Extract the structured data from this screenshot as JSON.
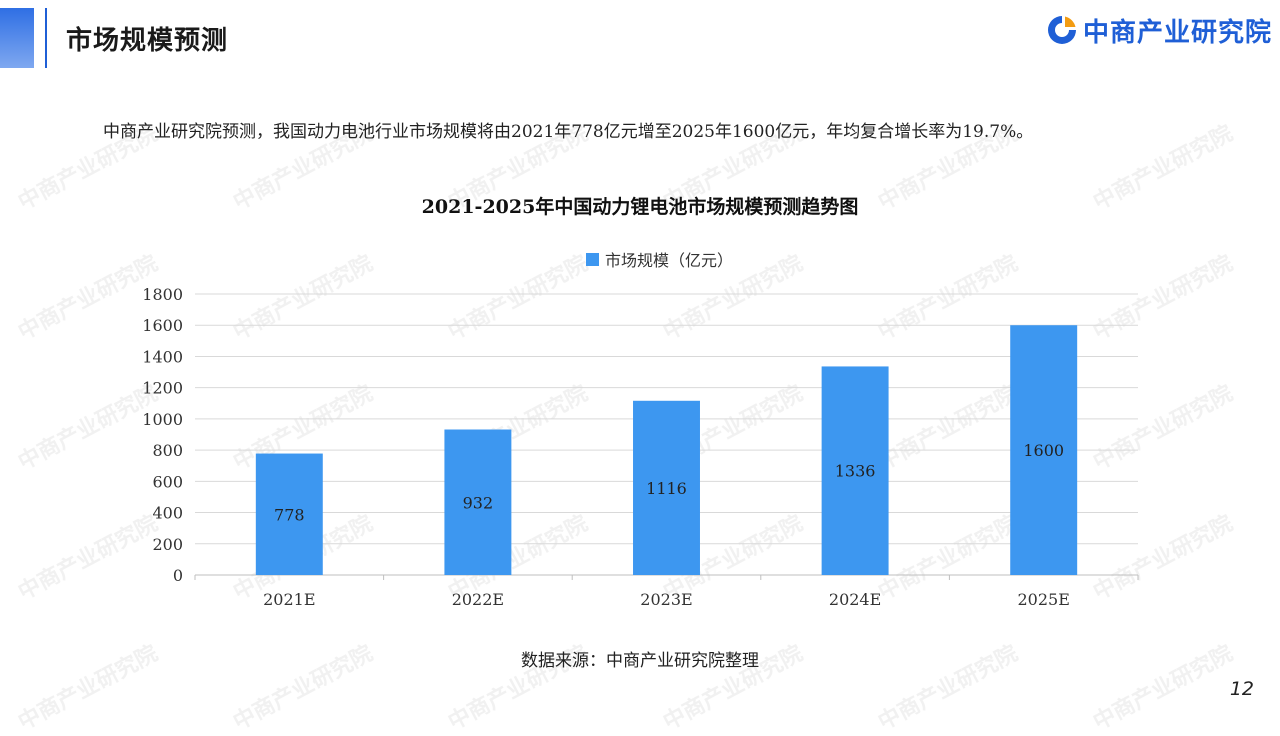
{
  "header": {
    "title": "市场规模预测",
    "logo_text": "中商产业研究院"
  },
  "summary": "中商产业研究院预测，我国动力电池行业市场规模将由2021年778亿元增至2025年1600亿元，年均复合增长率为19.7%。",
  "watermark_text": "中商产业研究院",
  "colors": {
    "bar": "#3d97f0",
    "accent": "#1f5fd6",
    "grid": "#d9d9d9",
    "axis": "#bfbfbf"
  },
  "chart_data": {
    "type": "bar",
    "title": "2021-2025年中国动力锂电池市场规模预测趋势图",
    "categories": [
      "2021E",
      "2022E",
      "2023E",
      "2024E",
      "2025E"
    ],
    "series": [
      {
        "name": "市场规模（亿元）",
        "values": [
          778,
          932,
          1116,
          1336,
          1600
        ]
      }
    ],
    "ylim": [
      0,
      1800
    ],
    "yticks": [
      0,
      200,
      400,
      600,
      800,
      1000,
      1200,
      1400,
      1600,
      1800
    ],
    "grid": true,
    "legend": "top-center",
    "data_labels": true
  },
  "source": "数据来源：中商产业研究院整理",
  "page_number": "12"
}
